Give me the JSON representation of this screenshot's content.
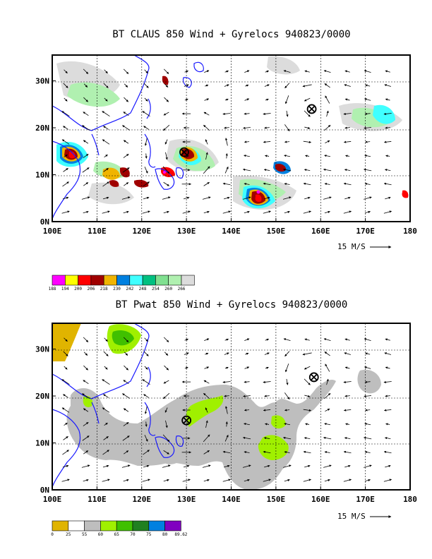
{
  "colors": {
    "coastline": "#1a1aff",
    "frame": "#000000",
    "grid": "#000000",
    "vector": "#000000",
    "center_marker": "#000000"
  },
  "panels": [
    {
      "title": "BT CLAUS 850 Wind + Gyrelocs 940823/0000",
      "x_ticks": [
        "100E",
        "110E",
        "120E",
        "130E",
        "140E",
        "150E",
        "160E",
        "170E",
        "180"
      ],
      "y_ticks": [
        "0N",
        "10N",
        "20N",
        "30N"
      ],
      "reference_vector_label": "15 M/S",
      "field": "cloud-top brightness temperature",
      "colorbar": {
        "labels": [
          "188",
          "194",
          "200",
          "206",
          "218",
          "230",
          "242",
          "248",
          "254",
          "260",
          "266"
        ],
        "colors": [
          "#ff00ff",
          "#ffff00",
          "#ff0000",
          "#a00000",
          "#f0b400",
          "#0080e0",
          "#40ffff",
          "#00c080",
          "#80e090",
          "#b0f0b0",
          "#dcdcdc"
        ]
      },
      "centers": [
        {
          "lon": 129.5,
          "lat": 14.8
        },
        {
          "lon": 158.0,
          "lat": 24.0
        }
      ]
    },
    {
      "title": "BT Pwat 850 Wind + Gyrelocs 940823/0000",
      "x_ticks": [
        "100E",
        "110E",
        "120E",
        "130E",
        "140E",
        "150E",
        "160E",
        "170E",
        "180"
      ],
      "y_ticks": [
        "0N",
        "10N",
        "20N",
        "30N"
      ],
      "reference_vector_label": "15 M/S",
      "field": "precipitable water",
      "colorbar": {
        "labels": [
          "0",
          "25",
          "55",
          "60",
          "65",
          "70",
          "75",
          "80",
          "89.62"
        ],
        "colors": [
          "#e0b400",
          "#ffffff",
          "#bebebe",
          "#a0f000",
          "#40c000",
          "#208020",
          "#0080e0",
          "#8000c0"
        ]
      },
      "centers": [
        {
          "lon": 130.0,
          "lat": 14.8
        },
        {
          "lon": 158.5,
          "lat": 24.0
        }
      ]
    }
  ]
}
